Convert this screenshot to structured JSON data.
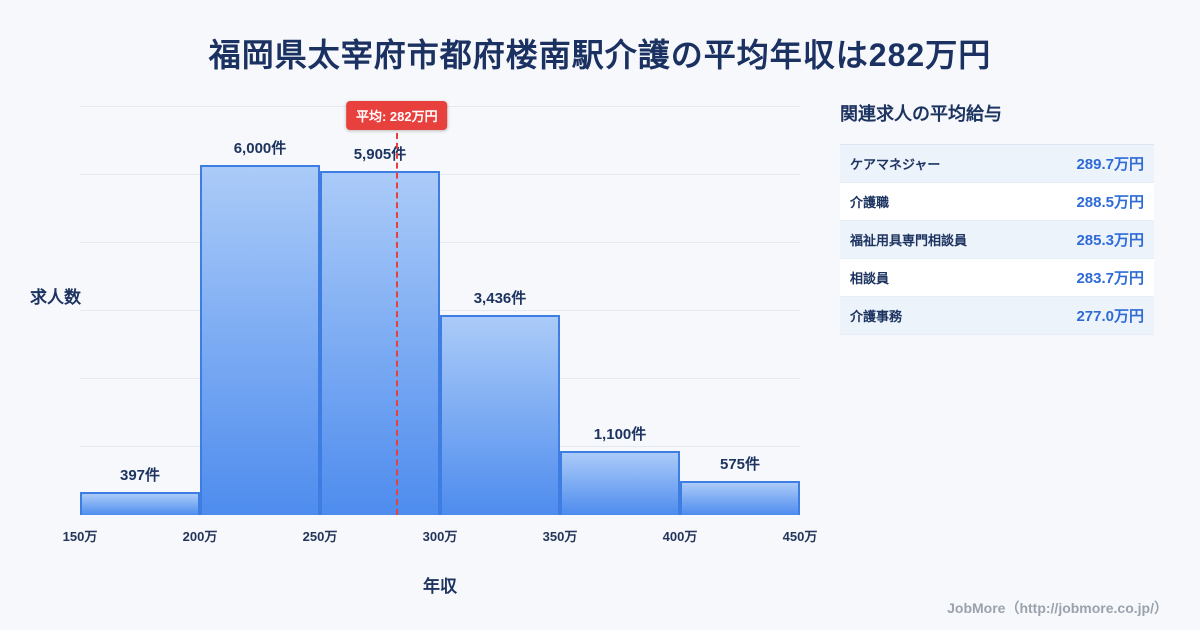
{
  "page": {
    "title": "福岡県太宰府市都府楼南駅介護の平均年収は282万円",
    "footer": "JobMore（http://jobmore.co.jp/）"
  },
  "chart_data": {
    "type": "bar",
    "title": "福岡県太宰府市都府楼南駅介護の平均年収は282万円",
    "xlabel": "年収",
    "ylabel": "求人数",
    "x_ticks": [
      "150万",
      "200万",
      "250万",
      "300万",
      "350万",
      "400万",
      "450万"
    ],
    "x_range": [
      150,
      450
    ],
    "ylim": [
      0,
      7000
    ],
    "grid": true,
    "bins": [
      {
        "range": [
          150,
          200
        ],
        "count": 397,
        "label": "397件"
      },
      {
        "range": [
          200,
          250
        ],
        "count": 6000,
        "label": "6,000件"
      },
      {
        "range": [
          250,
          300
        ],
        "count": 5905,
        "label": "5,905件"
      },
      {
        "range": [
          300,
          350
        ],
        "count": 3436,
        "label": "3,436件"
      },
      {
        "range": [
          350,
          400
        ],
        "count": 1100,
        "label": "1,100件"
      },
      {
        "range": [
          400,
          450
        ],
        "count": 575,
        "label": "575件"
      }
    ],
    "average": {
      "value": 282,
      "label": "平均: 282万円"
    },
    "colors": {
      "bar_top": "#abcbf8",
      "bar_bottom": "#4e8cee",
      "bar_border": "#3e7ee2",
      "average_line": "#e8403d"
    }
  },
  "side_panel": {
    "heading": "関連求人の平均給与",
    "accent_color": "#2e6bd6",
    "rows": [
      {
        "name": "ケアマネジャー",
        "value": "289.7万円"
      },
      {
        "name": "介護職",
        "value": "288.5万円"
      },
      {
        "name": "福祉用具専門相談員",
        "value": "285.3万円"
      },
      {
        "name": "相談員",
        "value": "283.7万円"
      },
      {
        "name": "介護事務",
        "value": "277.0万円"
      }
    ]
  }
}
